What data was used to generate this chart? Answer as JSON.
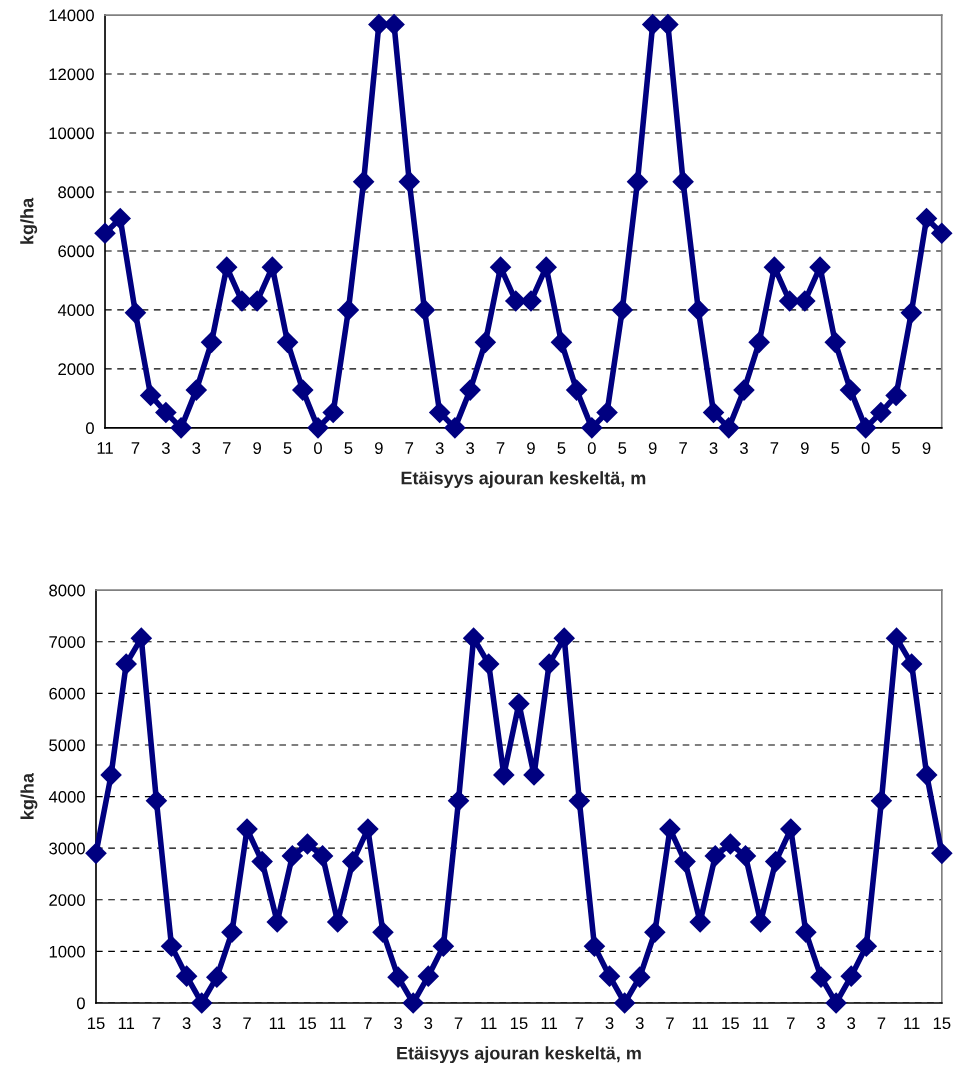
{
  "chart_data": [
    {
      "type": "line",
      "xlabel": "Etäisyys ajouran keskeltä, m",
      "ylabel": "kg/ha",
      "categories": [
        "11",
        null,
        "7",
        null,
        "3",
        null,
        "3",
        null,
        "7",
        null,
        "9",
        null,
        "5",
        null,
        "0",
        null,
        "5",
        null,
        "9",
        null,
        "7",
        null,
        "3",
        null,
        "3",
        null,
        "7",
        null,
        "9",
        null,
        "5",
        null,
        "0",
        null,
        "5",
        null,
        "9",
        null,
        "7",
        null,
        "3",
        null,
        "3",
        null,
        "7",
        null,
        "9",
        null,
        "5",
        null,
        "0",
        null,
        "5",
        null,
        "9",
        null
      ],
      "series": [
        {
          "color": "#000080",
          "values": [
            6600,
            7100,
            3900,
            1100,
            520,
            0,
            1280,
            2900,
            5450,
            4300,
            4300,
            5450,
            2900,
            1280,
            0,
            520,
            4000,
            8350,
            13680,
            13680,
            8350,
            4000,
            520,
            0,
            1280,
            2900,
            5450,
            4300,
            4300,
            5450,
            2900,
            1280,
            0,
            520,
            4000,
            8350,
            13680,
            13680,
            8350,
            4000,
            520,
            0,
            1280,
            2900,
            5450,
            4300,
            4300,
            5450,
            2900,
            1280,
            0,
            520,
            1100,
            3900,
            7100,
            6600
          ]
        }
      ],
      "ylim": [
        0,
        14000
      ],
      "yticks": [
        0,
        2000,
        4000,
        6000,
        8000,
        10000,
        12000,
        14000
      ],
      "grid": "y",
      "marker": "diamond",
      "line_style": "solid"
    },
    {
      "type": "line",
      "xlabel": "Etäisyys ajouran keskeltä, m",
      "ylabel": "kg/ha",
      "categories": [
        "15",
        null,
        "11",
        null,
        "7",
        null,
        "3",
        null,
        "3",
        null,
        "7",
        null,
        "11",
        null,
        "15",
        null,
        "11",
        null,
        "7",
        null,
        "3",
        null,
        "3",
        null,
        "7",
        null,
        "11",
        null,
        "15",
        null,
        "11",
        null,
        "7",
        null,
        "3",
        null,
        "3",
        null,
        "7",
        null,
        "11",
        null,
        "15",
        null,
        "11",
        null,
        "7",
        null,
        "3",
        null,
        "3",
        null,
        "7",
        null,
        "11",
        null,
        "15"
      ],
      "series": [
        {
          "color": "#000080",
          "values": [
            2900,
            4420,
            6570,
            7070,
            3920,
            1100,
            520,
            0,
            500,
            1370,
            3370,
            2740,
            1570,
            2850,
            3080,
            2850,
            1570,
            2740,
            3370,
            1370,
            500,
            0,
            520,
            1100,
            3920,
            7070,
            6570,
            4420,
            5800,
            4420,
            6570,
            7070,
            3920,
            1100,
            520,
            0,
            500,
            1370,
            3370,
            2740,
            1570,
            2850,
            3080,
            2850,
            1570,
            2740,
            3370,
            1370,
            500,
            0,
            520,
            1100,
            3920,
            7070,
            6570,
            4420,
            2900
          ]
        }
      ],
      "ylim": [
        0,
        8000
      ],
      "yticks": [
        0,
        1000,
        2000,
        3000,
        4000,
        5000,
        6000,
        7000,
        8000
      ],
      "grid": "y",
      "marker": "diamond",
      "line_style": "solid"
    }
  ]
}
